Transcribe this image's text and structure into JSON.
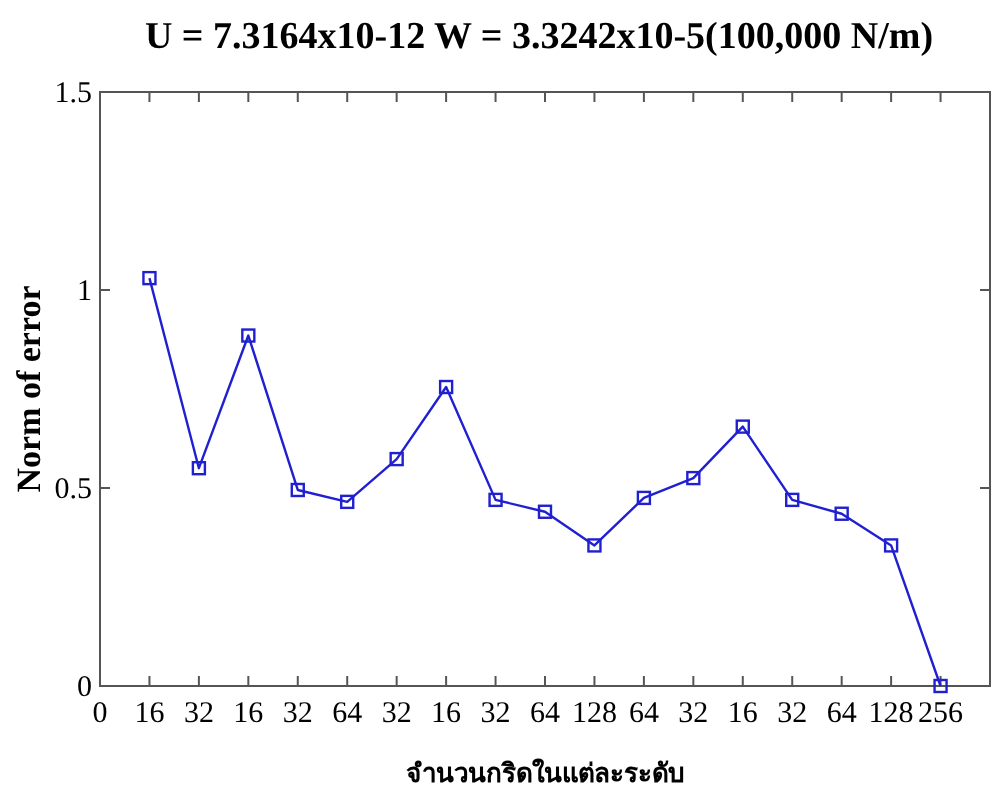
{
  "chart_data": {
    "type": "line",
    "title": "U = 7.3164x10-12    W = 3.3242x10-5(100,000 N/m)",
    "xlabel": "จำนวนกริดในแต่ละระดับ",
    "ylabel": "Norm of error",
    "categories": [
      "0",
      "16",
      "32",
      "16",
      "32",
      "64",
      "32",
      "16",
      "32",
      "64",
      "128",
      "64",
      "32",
      "16",
      "32",
      "64",
      "128",
      "256",
      null
    ],
    "series": [
      {
        "color": "#2020d0",
        "values": [
          null,
          1.03,
          0.55,
          0.885,
          0.495,
          0.465,
          0.573,
          0.755,
          0.47,
          0.44,
          0.355,
          0.475,
          0.525,
          0.655,
          0.47,
          0.435,
          0.355,
          0,
          null
        ]
      }
    ],
    "ylim": [
      0,
      1.5
    ],
    "yticks": [
      0,
      0.5,
      1,
      1.5
    ],
    "marker": "square",
    "line_style": "solid",
    "grid": false
  }
}
